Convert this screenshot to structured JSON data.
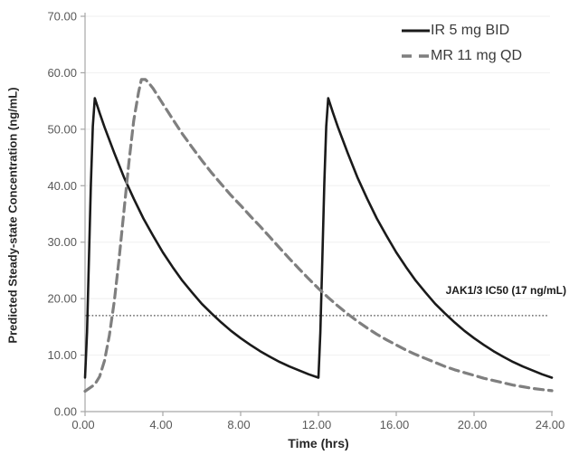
{
  "chart_data": {
    "type": "line",
    "title": "",
    "xlabel": "Time (hrs)",
    "ylabel": "Predicted Steady-state Concentration (ng/mL)",
    "xlim": [
      0,
      24
    ],
    "ylim": [
      0,
      70
    ],
    "x_ticks": [
      0,
      4,
      8,
      12,
      16,
      20,
      24
    ],
    "x_tick_labels": [
      "0.00",
      "4.00",
      "8.00",
      "12.00",
      "16.00",
      "20.00",
      "24.00"
    ],
    "y_ticks": [
      0,
      10,
      20,
      30,
      40,
      50,
      60,
      70
    ],
    "y_tick_labels": [
      "0.00",
      "10.00",
      "20.00",
      "30.00",
      "40.00",
      "50.00",
      "60.00",
      "70.00"
    ],
    "grid": "horizontal-faint",
    "legend_position": "top-right-inside",
    "series": [
      {
        "name": "IR 5 mg BID",
        "style": "solid",
        "color": "#1a1a1a",
        "width": 2.6,
        "points": [
          [
            0,
            6
          ],
          [
            0.1,
            14
          ],
          [
            0.2,
            27
          ],
          [
            0.3,
            40.5
          ],
          [
            0.4,
            50.5
          ],
          [
            0.5,
            55.5
          ],
          [
            0.75,
            52.9
          ],
          [
            1,
            50.4
          ],
          [
            1.5,
            45.8
          ],
          [
            2,
            41.5
          ],
          [
            2.5,
            37.7
          ],
          [
            3,
            34.2
          ],
          [
            3.5,
            31.1
          ],
          [
            4,
            28.2
          ],
          [
            4.5,
            25.6
          ],
          [
            5,
            23.2
          ],
          [
            5.5,
            21.1
          ],
          [
            6,
            19.1
          ],
          [
            6.5,
            17.4
          ],
          [
            7,
            15.8
          ],
          [
            7.5,
            14.3
          ],
          [
            8,
            13
          ],
          [
            8.5,
            11.8
          ],
          [
            9,
            10.7
          ],
          [
            9.5,
            9.7
          ],
          [
            10,
            8.8
          ],
          [
            10.5,
            8
          ],
          [
            11,
            7.3
          ],
          [
            11.5,
            6.6
          ],
          [
            12,
            6
          ],
          [
            12.1,
            14
          ],
          [
            12.2,
            27
          ],
          [
            12.3,
            40.5
          ],
          [
            12.4,
            50.5
          ],
          [
            12.5,
            55.5
          ],
          [
            12.75,
            52.9
          ],
          [
            13,
            50.4
          ],
          [
            13.5,
            45.8
          ],
          [
            14,
            41.5
          ],
          [
            14.5,
            37.7
          ],
          [
            15,
            34.2
          ],
          [
            15.5,
            31.1
          ],
          [
            16,
            28.2
          ],
          [
            16.5,
            25.6
          ],
          [
            17,
            23.2
          ],
          [
            17.5,
            21.1
          ],
          [
            18,
            19.1
          ],
          [
            18.5,
            17.4
          ],
          [
            19,
            15.8
          ],
          [
            19.5,
            14.3
          ],
          [
            20,
            13
          ],
          [
            20.5,
            11.8
          ],
          [
            21,
            10.7
          ],
          [
            21.5,
            9.7
          ],
          [
            22,
            8.8
          ],
          [
            22.5,
            8
          ],
          [
            23,
            7.3
          ],
          [
            23.5,
            6.6
          ],
          [
            24,
            6
          ]
        ]
      },
      {
        "name": "MR 11 mg QD",
        "style": "dashed",
        "color": "#7f7f7f",
        "width": 3.2,
        "points": [
          [
            0,
            3.6
          ],
          [
            0.5,
            4.8
          ],
          [
            0.75,
            6.2
          ],
          [
            1,
            9
          ],
          [
            1.25,
            13.5
          ],
          [
            1.5,
            19.5
          ],
          [
            1.75,
            27
          ],
          [
            2,
            35.5
          ],
          [
            2.25,
            44
          ],
          [
            2.5,
            51.5
          ],
          [
            2.75,
            56.5
          ],
          [
            2.9,
            58.8
          ],
          [
            3.1,
            58.8
          ],
          [
            3.25,
            58.3
          ],
          [
            3.5,
            57.2
          ],
          [
            4,
            54.5
          ],
          [
            4.5,
            51.8
          ],
          [
            5,
            49.2
          ],
          [
            5.5,
            46.8
          ],
          [
            6,
            44.5
          ],
          [
            6.5,
            42.3
          ],
          [
            7,
            40.3
          ],
          [
            7.5,
            38.3
          ],
          [
            8,
            36.5
          ],
          [
            8.5,
            34.6
          ],
          [
            9,
            32.8
          ],
          [
            9.5,
            30.9
          ],
          [
            10,
            29
          ],
          [
            10.5,
            27.1
          ],
          [
            11,
            25.3
          ],
          [
            11.5,
            23.5
          ],
          [
            12,
            21.8
          ],
          [
            12.5,
            20.2
          ],
          [
            13,
            18.7
          ],
          [
            13.5,
            17.3
          ],
          [
            14,
            16
          ],
          [
            14.5,
            14.8
          ],
          [
            15,
            13.7
          ],
          [
            15.5,
            12.7
          ],
          [
            16,
            11.8
          ],
          [
            16.5,
            10.9
          ],
          [
            17,
            10.1
          ],
          [
            17.5,
            9.4
          ],
          [
            18,
            8.7
          ],
          [
            18.5,
            8
          ],
          [
            19,
            7.4
          ],
          [
            19.5,
            6.9
          ],
          [
            20,
            6.4
          ],
          [
            20.5,
            5.9
          ],
          [
            21,
            5.5
          ],
          [
            21.5,
            5.1
          ],
          [
            22,
            4.7
          ],
          [
            22.5,
            4.4
          ],
          [
            23,
            4.1
          ],
          [
            23.5,
            3.9
          ],
          [
            24,
            3.7
          ]
        ]
      }
    ],
    "reference_line": {
      "label": "JAK1/3 IC50 (17 ng/mL)",
      "value": 17,
      "style": "dotted",
      "color": "#4d4d4d"
    },
    "colors": {
      "axis": "#a6a6a6",
      "tick_label": "#595959",
      "gridline": "#f2f2f2",
      "background": "#ffffff"
    }
  }
}
